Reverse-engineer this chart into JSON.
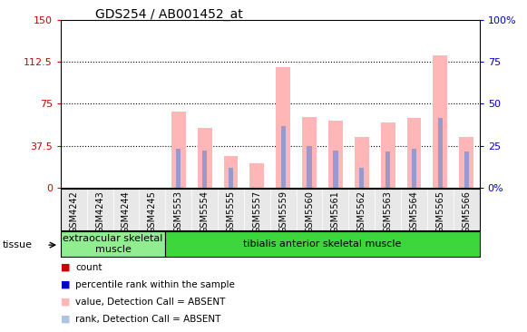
{
  "title": "GDS254 / AB001452_at",
  "samples": [
    "GSM4242",
    "GSM4243",
    "GSM4244",
    "GSM4245",
    "GSM5553",
    "GSM5554",
    "GSM5555",
    "GSM5557",
    "GSM5559",
    "GSM5560",
    "GSM5561",
    "GSM5562",
    "GSM5563",
    "GSM5564",
    "GSM5565",
    "GSM5566"
  ],
  "pink_values": [
    0,
    0,
    0,
    0,
    68,
    53,
    28,
    22,
    108,
    63,
    60,
    45,
    58,
    62,
    118,
    45
  ],
  "blue_values": [
    0,
    0,
    0,
    0,
    35,
    33,
    18,
    0,
    55,
    37,
    33,
    18,
    32,
    35,
    62,
    32
  ],
  "left_ylim": [
    0,
    150
  ],
  "right_ylim": [
    0,
    100
  ],
  "left_yticks": [
    0,
    37.5,
    75,
    112.5,
    150
  ],
  "right_yticks": [
    0,
    25,
    50,
    75,
    100
  ],
  "left_ytick_labels": [
    "0",
    "37.5",
    "75",
    "112.5",
    "150"
  ],
  "right_ytick_labels": [
    "0%",
    "25",
    "50",
    "75",
    "100%"
  ],
  "grid_lines": [
    37.5,
    75,
    112.5
  ],
  "tissue_groups": [
    {
      "label": "extraocular skeletal\nmuscle",
      "start": 0,
      "end": 4,
      "color": "#90EE90"
    },
    {
      "label": "tibialis anterior skeletal muscle",
      "start": 4,
      "end": 16,
      "color": "#3DD63D"
    }
  ],
  "legend_items": [
    {
      "color": "#cc0000",
      "label": "count"
    },
    {
      "color": "#0000cc",
      "label": "percentile rank within the sample"
    },
    {
      "color": "#FFB6B6",
      "label": "value, Detection Call = ABSENT"
    },
    {
      "color": "#b0c4de",
      "label": "rank, Detection Call = ABSENT"
    }
  ],
  "bar_width": 0.55,
  "blue_bar_width": 0.18,
  "pink_color": "#FFB6B6",
  "blue_color": "#9999CC",
  "left_label_color": "#cc0000",
  "right_label_color": "#0000cc",
  "tissue_label": "tissue",
  "title_fontsize": 10,
  "axis_fontsize": 8,
  "tick_fontsize": 7,
  "legend_fontsize": 7.5
}
